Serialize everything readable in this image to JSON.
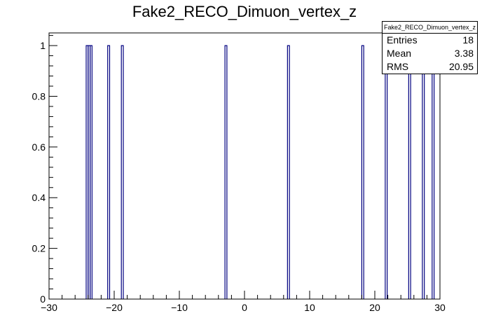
{
  "chart_data": {
    "type": "bar",
    "title": "Fake2_RECO_Dimuon_vertex_z",
    "xlabel": "",
    "ylabel": "",
    "xlim": [
      -30,
      30
    ],
    "ylim": [
      0,
      1.05
    ],
    "bin_width": 0.3,
    "xticks": [
      -30,
      -20,
      -10,
      0,
      10,
      20,
      30
    ],
    "yticks": [
      0,
      0.2,
      0.4,
      0.6,
      0.8,
      1
    ],
    "xtick_labels": [
      "−30",
      "−20",
      "−10",
      "0",
      "10",
      "20",
      "30"
    ],
    "ytick_labels": [
      "0",
      "0.2",
      "0.4",
      "0.6",
      "0.8",
      "1"
    ],
    "bins": [
      {
        "x": -24.15,
        "value": 1
      },
      {
        "x": -23.85,
        "value": 1
      },
      {
        "x": -23.55,
        "value": 1
      },
      {
        "x": -20.85,
        "value": 1
      },
      {
        "x": -18.75,
        "value": 1
      },
      {
        "x": -2.85,
        "value": 1
      },
      {
        "x": 6.75,
        "value": 1
      },
      {
        "x": 18.15,
        "value": 1
      },
      {
        "x": 21.75,
        "value": 1
      },
      {
        "x": 25.35,
        "value": 1
      },
      {
        "x": 27.45,
        "value": 1
      },
      {
        "x": 28.95,
        "value": 1
      }
    ],
    "line_color": "#000080",
    "grid": false,
    "stats": {
      "header": "Fake2_RECO_Dimuon_vertex_z",
      "rows": [
        {
          "label": "Entries",
          "value": "18"
        },
        {
          "label": "Mean",
          "value": "3.38"
        },
        {
          "label": "RMS",
          "value": "20.95"
        }
      ]
    }
  }
}
